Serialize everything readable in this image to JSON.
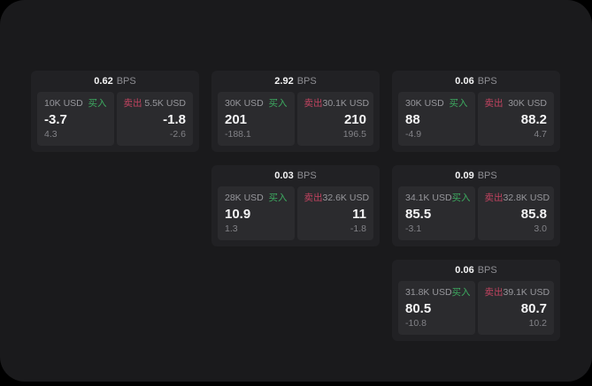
{
  "labels": {
    "bps_unit": "BPS",
    "buy": "买入",
    "sell": "卖出"
  },
  "colors": {
    "buy_green": "#3dab60",
    "sell_red": "#c14360",
    "window_background": "#1a1a1c",
    "card_background": "#212124",
    "tile_background": "#2b2b2e",
    "text_primary": "#f4f4f5",
    "text_secondary": "#97979c",
    "text_tertiary": "#828287"
  },
  "cards": [
    {
      "bps": "0.62",
      "buy": {
        "amount": "10K USD",
        "value": "-3.7",
        "change": "4.3"
      },
      "sell": {
        "amount": "5.5K USD",
        "value": "-1.8",
        "change": "-2.6"
      }
    },
    {
      "bps": "2.92",
      "buy": {
        "amount": "30K USD",
        "value": "201",
        "change": "-188.1"
      },
      "sell": {
        "amount": "30.1K USD",
        "value": "210",
        "change": "196.5"
      }
    },
    {
      "bps": "0.06",
      "buy": {
        "amount": "30K USD",
        "value": "88",
        "change": "-4.9"
      },
      "sell": {
        "amount": "30K USD",
        "value": "88.2",
        "change": "4.7"
      }
    },
    {
      "bps": "0.03",
      "buy": {
        "amount": "28K USD",
        "value": "10.9",
        "change": "1.3"
      },
      "sell": {
        "amount": "32.6K USD",
        "value": "11",
        "change": "-1.8"
      }
    },
    {
      "bps": "0.09",
      "buy": {
        "amount": "34.1K USD",
        "value": "85.5",
        "change": "-3.1"
      },
      "sell": {
        "amount": "32.8K USD",
        "value": "85.8",
        "change": "3.0"
      }
    },
    {
      "bps": "0.06",
      "buy": {
        "amount": "31.8K USD",
        "value": "80.5",
        "change": "-10.8"
      },
      "sell": {
        "amount": "39.1K USD",
        "value": "80.7",
        "change": "10.2"
      }
    }
  ]
}
